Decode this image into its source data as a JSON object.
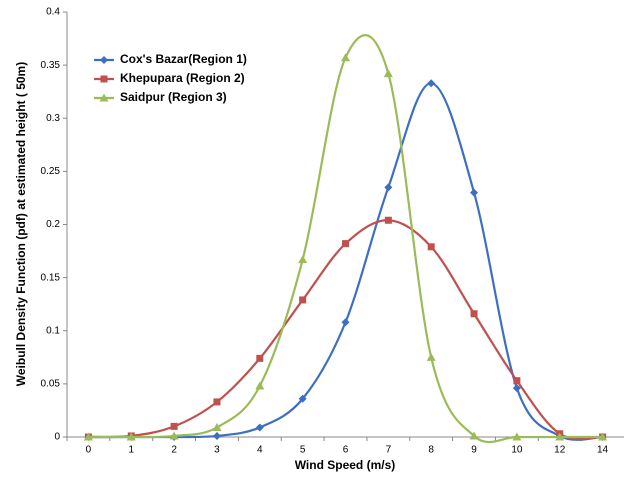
{
  "chart_data": {
    "type": "line",
    "x_label": "Wind Speed (m/s)",
    "y_label": "Weibull Density Function (pdf) at estimated height ( 50m)",
    "categories": [
      "0",
      "1",
      "2",
      "3",
      "4",
      "5",
      "6",
      "7",
      "8",
      "9",
      "10",
      "12",
      "14"
    ],
    "series": [
      {
        "name": "Cox's Bazar(Region 1)",
        "color": "#3c6fc4",
        "marker": "diamond",
        "values": [
          0,
          0,
          0,
          0.001,
          0.009,
          0.036,
          0.108,
          0.235,
          0.333,
          0.23,
          0.046,
          0.001,
          0
        ]
      },
      {
        "name": "Khepupara (Region 2)",
        "color": "#c0504d",
        "marker": "square",
        "values": [
          0,
          0.001,
          0.01,
          0.033,
          0.074,
          0.129,
          0.182,
          0.204,
          0.179,
          0.116,
          0.053,
          0.003,
          0
        ]
      },
      {
        "name": "Saidpur (Region 3)",
        "color": "#9bbb59",
        "marker": "triangle",
        "values": [
          0,
          0,
          0.001,
          0.009,
          0.048,
          0.167,
          0.357,
          0.342,
          0.075,
          0.001,
          0,
          0,
          0
        ]
      }
    ],
    "ylim": [
      0,
      0.4
    ],
    "yticks": [
      0,
      0.05,
      0.1,
      0.15,
      0.2,
      0.25,
      0.3,
      0.35,
      0.4
    ],
    "grid": false,
    "legend": "upper left"
  }
}
